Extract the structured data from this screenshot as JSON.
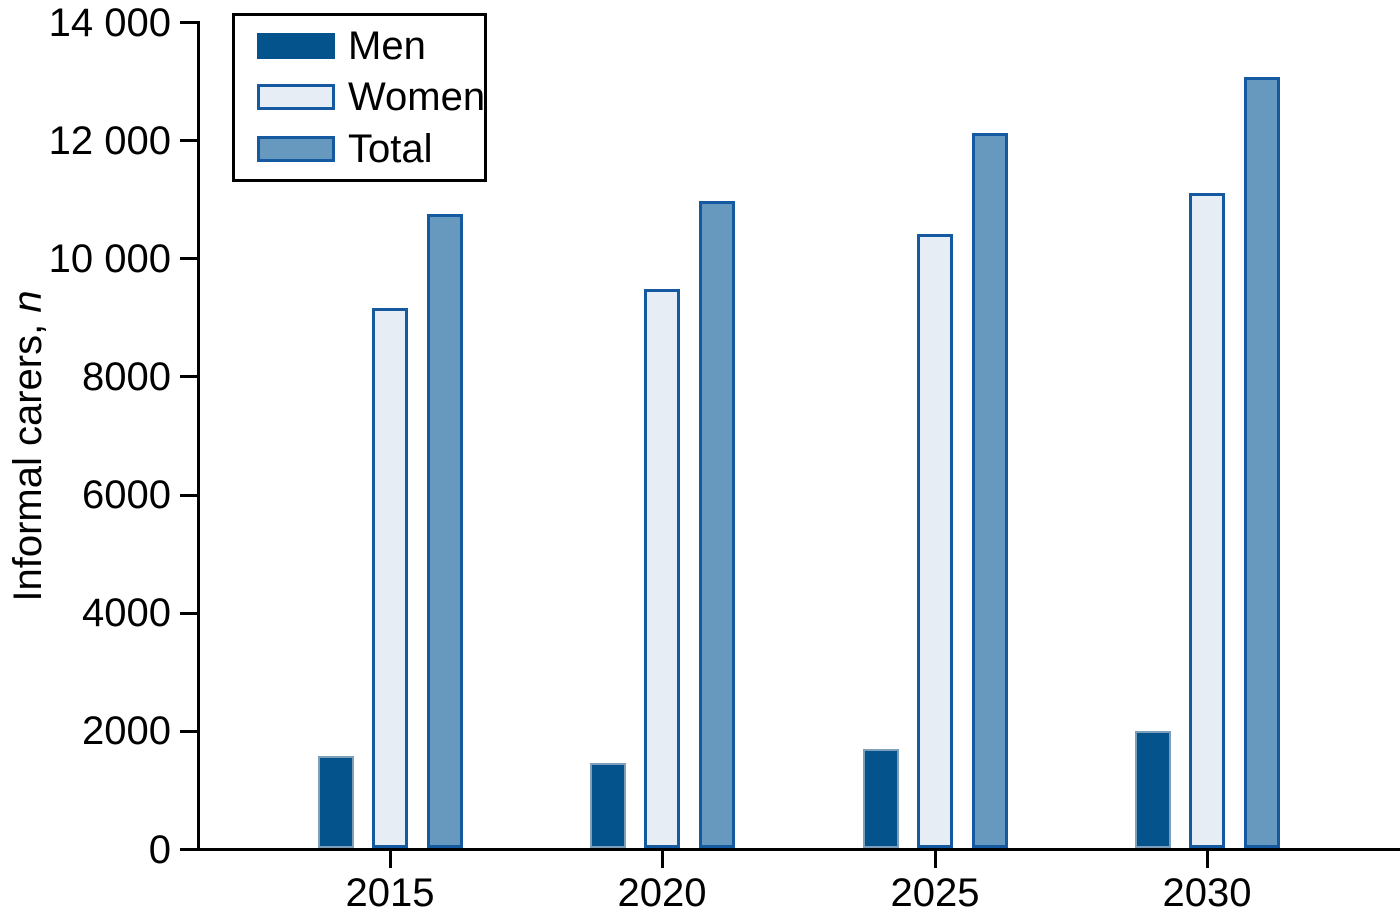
{
  "chart_data": {
    "type": "bar",
    "title": "",
    "categories": [
      "2015",
      "2020",
      "2025",
      "2030"
    ],
    "series": [
      {
        "name": "Men",
        "values": [
          1550,
          1440,
          1680,
          1980
        ],
        "fill": "#05538D",
        "edge": "#7E9FBA"
      },
      {
        "name": "Women",
        "values": [
          9140,
          9460,
          10390,
          11080
        ],
        "fill": "#E7EDF4",
        "edge": "#1559A0"
      },
      {
        "name": "Total",
        "values": [
          10740,
          10950,
          12110,
          13060
        ],
        "fill": "#6799BE",
        "edge": "#1559A0"
      }
    ],
    "xlabel": "",
    "ylabel": "Informal carers, n",
    "ylabel_main": "Informal carers, ",
    "ylabel_var": "n",
    "ylim": [
      0,
      14000
    ],
    "yticks": [
      {
        "value": 0,
        "label": "0"
      },
      {
        "value": 2000,
        "label": "2000"
      },
      {
        "value": 4000,
        "label": "4000"
      },
      {
        "value": 6000,
        "label": "6000"
      },
      {
        "value": 8000,
        "label": "8000"
      },
      {
        "value": 10000,
        "label": "10 000"
      },
      {
        "value": 12000,
        "label": "12 000"
      },
      {
        "value": 14000,
        "label": "14 000"
      }
    ],
    "legend_position": "upper-left",
    "grid": false
  },
  "colors": {
    "axis": "#000000",
    "background": "#FFFFFF",
    "men": "#05538D",
    "women_fill": "#E7EDF4",
    "total_fill": "#6799BE",
    "bar_edge_dark": "#1559A0",
    "men_edge_light": "#7E9FBA"
  }
}
